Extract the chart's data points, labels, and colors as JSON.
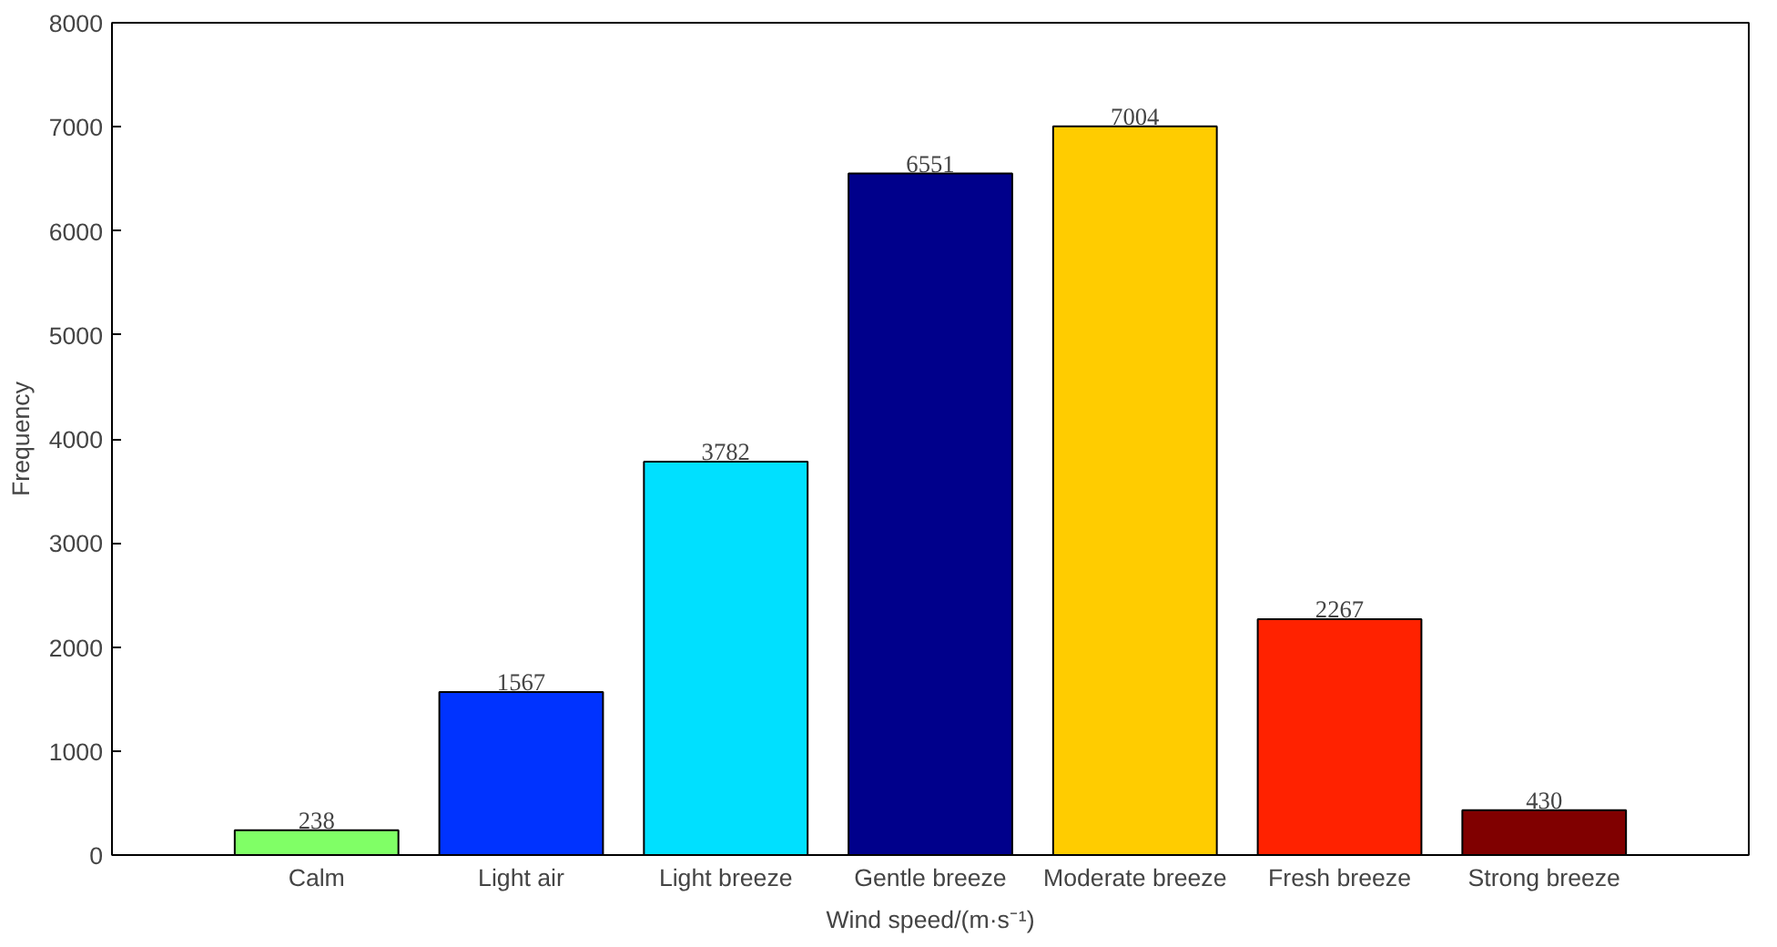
{
  "chart_data": {
    "type": "bar",
    "xlabel": "Wind speed/(m·s⁻¹)",
    "ylabel": "Frequency",
    "categories": [
      "Calm",
      "Light air",
      "Light breeze",
      "Gentle breeze",
      "Moderate breeze",
      "Fresh breeze",
      "Strong breeze"
    ],
    "values": [
      238,
      1567,
      3782,
      6551,
      7004,
      2267,
      430
    ],
    "colors": [
      "#80ff66",
      "#0033ff",
      "#00e0ff",
      "#00008b",
      "#ffcc00",
      "#ff2200",
      "#800000"
    ],
    "ylim": [
      0,
      8000
    ],
    "yticks": [
      0,
      1000,
      2000,
      3000,
      4000,
      5000,
      6000,
      7000,
      8000
    ],
    "grid": false,
    "data_labels": true
  }
}
